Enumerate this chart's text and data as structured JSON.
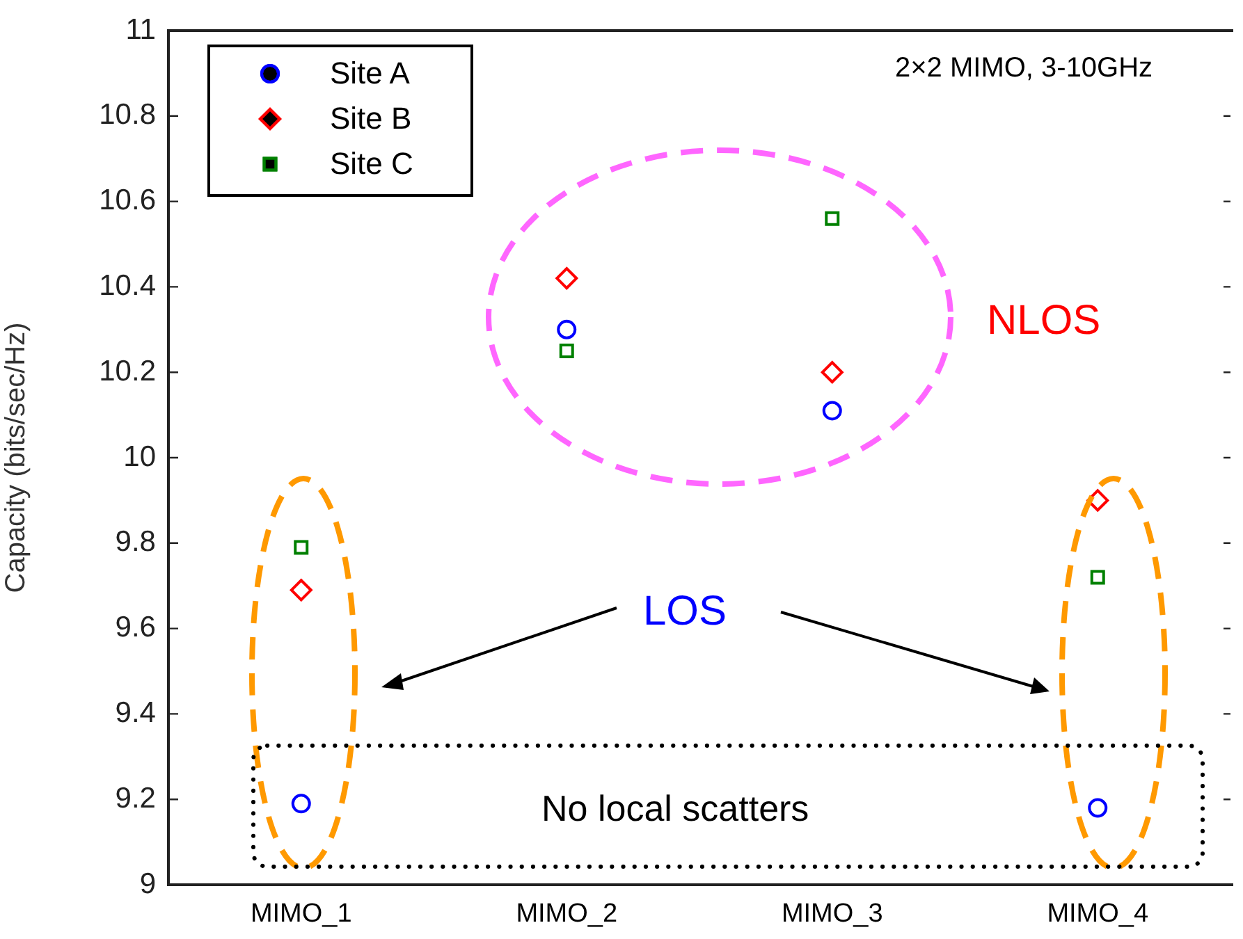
{
  "chart_data": {
    "type": "scatter",
    "ylabel": "Capacity (bits/sec/Hz)",
    "categories": [
      "MIMO_1",
      "MIMO_2",
      "MIMO_3",
      "MIMO_4"
    ],
    "series": [
      {
        "name": "Site A",
        "color": "#0000ff",
        "marker": "circle",
        "values": [
          9.19,
          10.3,
          10.11,
          9.18
        ]
      },
      {
        "name": "Site B",
        "color": "#ff0000",
        "marker": "diamond",
        "values": [
          9.69,
          10.42,
          10.2,
          9.9
        ]
      },
      {
        "name": "Site C",
        "color": "#008000",
        "marker": "square",
        "values": [
          9.79,
          10.25,
          10.56,
          9.72
        ]
      }
    ],
    "ylim": [
      9,
      11
    ],
    "yticks": [
      9,
      9.2,
      9.4,
      9.6,
      9.8,
      10,
      10.2,
      10.4,
      10.6,
      10.8,
      11
    ],
    "grid": false,
    "legend": "top left",
    "annotations": [
      "2×2 MIMO, 3-10GHz",
      "NLOS",
      "LOS",
      "No local scatters"
    ]
  }
}
